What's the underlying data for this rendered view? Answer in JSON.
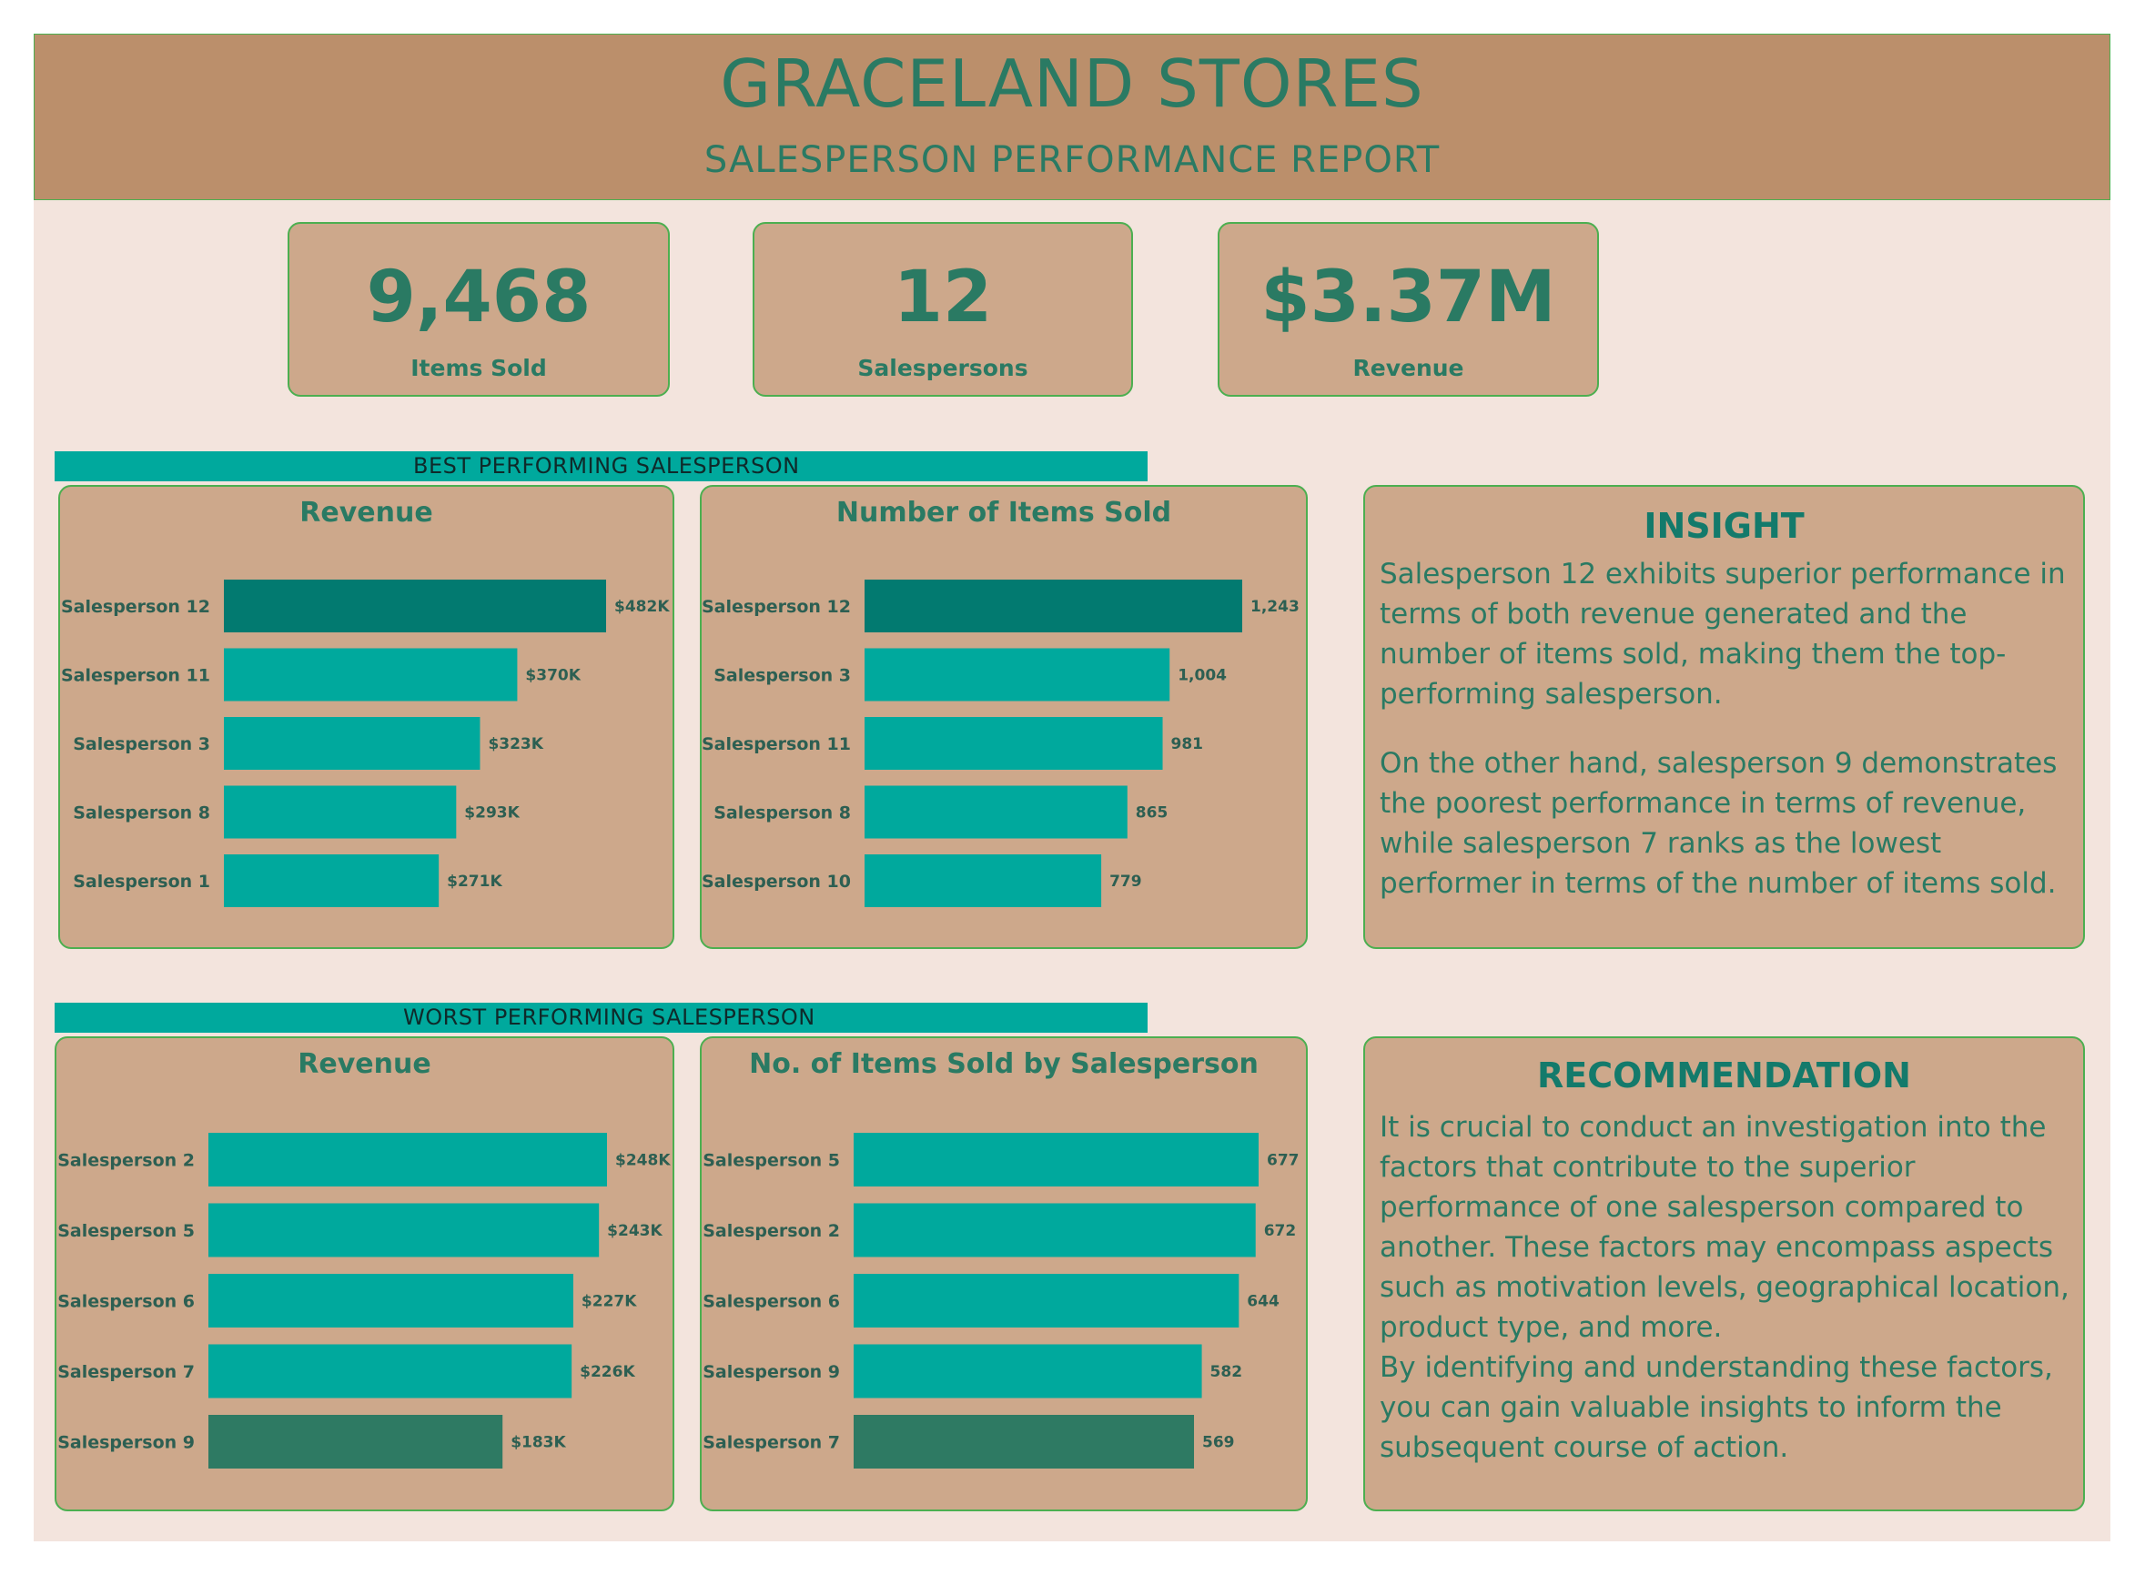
{
  "header": {
    "title": "GRACELAND STORES",
    "subtitle": "SALESPERSON PERFORMANCE REPORT"
  },
  "kpis": [
    {
      "value": "9,468",
      "label": "Items Sold"
    },
    {
      "value": "12",
      "label": "Salespersons"
    },
    {
      "value": "$3.37M",
      "label": "Revenue"
    }
  ],
  "sections": {
    "best_label": "BEST PERFORMING SALESPERSON",
    "worst_label": "WORST PERFORMING SALESPERSON"
  },
  "insight": {
    "heading": "INSIGHT",
    "paragraphs": [
      "Salesperson 12 exhibits superior performance in terms of both revenue generated and the number of items sold, making them the top-performing salesperson.",
      "On the other hand, salesperson 9 demonstrates the poorest performance in terms of revenue, while salesperson 7 ranks as the lowest performer in terms of the number of items sold."
    ]
  },
  "recommendation": {
    "heading": "RECOMMENDATION",
    "paragraphs": [
      "It is crucial to conduct an investigation into the factors that contribute to the superior performance of one salesperson compared to another. These factors may encompass aspects such as motivation levels, geographical location, product type, and more.",
      "By identifying and understanding these factors, you can gain valuable insights to inform the subsequent course of action."
    ]
  },
  "colors": {
    "bar": "#00a99d",
    "highlight_best": "#027a70",
    "highlight_worst": "#2e7a63"
  },
  "chart_data": [
    {
      "id": "best-revenue",
      "type": "bar",
      "orientation": "horizontal",
      "title": "Revenue",
      "categories": [
        "Salesperson 12",
        "Salesperson 11",
        "Salesperson 3",
        "Salesperson 8",
        "Salesperson 1"
      ],
      "values": [
        482000,
        370000,
        323000,
        293000,
        271000
      ],
      "value_labels": [
        "$482K",
        "$370K",
        "$323K",
        "$293K",
        "$271K"
      ],
      "highlight_index": 0,
      "highlight": "best"
    },
    {
      "id": "best-items",
      "type": "bar",
      "orientation": "horizontal",
      "title": "Number of Items Sold",
      "categories": [
        "Salesperson 12",
        "Salesperson 3",
        "Salesperson 11",
        "Salesperson 8",
        "Salesperson 10"
      ],
      "values": [
        1243,
        1004,
        981,
        865,
        779
      ],
      "value_labels": [
        "1,243",
        "1,004",
        "981",
        "865",
        "779"
      ],
      "highlight_index": 0,
      "highlight": "best"
    },
    {
      "id": "worst-revenue",
      "type": "bar",
      "orientation": "horizontal",
      "title": "Revenue",
      "categories": [
        "Salesperson 2",
        "Salesperson 5",
        "Salesperson 6",
        "Salesperson 7",
        "Salesperson 9"
      ],
      "values": [
        248000,
        243000,
        227000,
        226000,
        183000
      ],
      "value_labels": [
        "$248K",
        "$243K",
        "$227K",
        "$226K",
        "$183K"
      ],
      "highlight_index": 4,
      "highlight": "worst"
    },
    {
      "id": "worst-items",
      "type": "bar",
      "orientation": "horizontal",
      "title": "No. of Items Sold by Salesperson",
      "categories": [
        "Salesperson 5",
        "Salesperson 2",
        "Salesperson 6",
        "Salesperson 9",
        "Salesperson 7"
      ],
      "values": [
        677,
        672,
        644,
        582,
        569
      ],
      "value_labels": [
        "677",
        "672",
        "644",
        "582",
        "569"
      ],
      "highlight_index": 4,
      "highlight": "worst"
    }
  ]
}
